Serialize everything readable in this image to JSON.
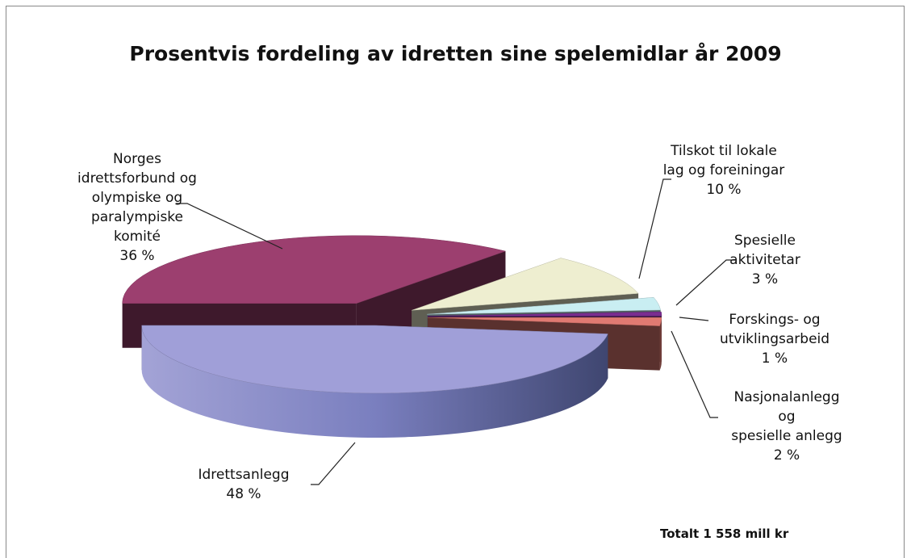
{
  "chart_data": {
    "type": "pie3d",
    "title": "Prosentvis fordeling av idretten sine spelemidlar år 2009",
    "annotation": "Totalt 1 558 mill kr",
    "categories": [
      "Idrettsanlegg",
      "Norges\nidrettsforbund og\nolympiske og\nparalympiske\nkomité",
      "Tilskot til lokale\nlag og foreiningar",
      "Spesielle\naktivitetar",
      "Forskings- og\nutviklingsarbeid",
      "Nasjonalanlegg og\nspesielle anlegg"
    ],
    "values": [
      48,
      36,
      10,
      3,
      1,
      2
    ],
    "value_labels": [
      "48 %",
      "36 %",
      "10 %",
      "3 %",
      "1 %",
      "2 %"
    ],
    "colors": [
      "#a09fd8",
      "#9c3f6f",
      "#eeeed0",
      "#c9eef2",
      "#7a2d90",
      "#e07a72"
    ]
  }
}
